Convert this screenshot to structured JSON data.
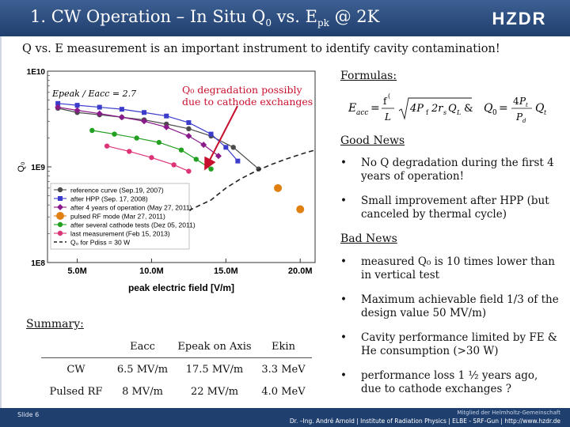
{
  "header": {
    "title_main": "1. CW Operation – In Situ Q",
    "title_sub0": "0",
    "title_mid": " vs. E",
    "title_sub1": "pk",
    "title_end": " @ 2K",
    "logo": "HZDR"
  },
  "subtitle": "Q vs. E measurement is an important instrument to identify cavity contamination!",
  "callout": {
    "line1": "Q₀ degradation possibly",
    "line2": "due to cathode exchanges"
  },
  "formulas": {
    "title": "Formulas:"
  },
  "good_news": {
    "title": "Good News",
    "items": [
      "No Q degradation during the first 4 years of operation!",
      "Small improvement after HPP (but canceled by thermal cycle)"
    ]
  },
  "bad_news": {
    "title": "Bad News",
    "items": [
      "measured Q₀ is 10 times lower than in vertical test",
      "Maximum achievable field 1/3 of the design value 50 MV/m)",
      "Cavity performance limited by FE & He consumption (>30 W)",
      "performance loss 1 ½ years ago, due to cathode exchanges ?"
    ]
  },
  "summary": {
    "title": "Summary:",
    "headers": [
      "",
      "Eacc",
      "Epeak on Axis",
      "Ekin"
    ],
    "rows": [
      [
        "CW",
        "6.5 MV/m",
        "17.5 MV/m",
        "3.3 MeV"
      ],
      [
        "Pulsed RF",
        "8 MV/m",
        "22 MV/m",
        "4.0 MeV"
      ]
    ]
  },
  "footer": {
    "slide": "Slide 6",
    "org": "Mitglied der Helmholtz-Gemeinschaft",
    "author": "Dr. –Ing. André Arnold | Institute of Radiation Physics | ELBE - SRF-Gun | http://www.hzdr.de"
  },
  "colors": {
    "header": "#1f3f6e",
    "callout": "#c8102e",
    "reference": "#4a4a4a",
    "hpp": "#3b3bcc",
    "four_years": "#8a1a8a",
    "pulsed": "#e08010",
    "cathode": "#22a022",
    "last": "#dd3377",
    "p_diss": "#222222"
  },
  "chart_data": {
    "type": "scatter",
    "xlabel": "peak electric field [V/m]",
    "ylabel": "Q₀",
    "xlim": [
      3.0,
      21.0
    ],
    "x_tick_labels": [
      "5.0M",
      "10.0M",
      "15.0M",
      "20.0M"
    ],
    "x_ticks": [
      5,
      10,
      15,
      20
    ],
    "y_log": true,
    "ylim": [
      100000000.0,
      10000000000.0
    ],
    "y_tick_labels": [
      "1E8",
      "1E9",
      "1E10"
    ],
    "annotation": "Epeak / Eacc = 2.7",
    "legend_position": "bottom-left",
    "series": [
      {
        "name": "reference curve (Sep.19, 2007)",
        "marker": "circle",
        "color": "#4a4a4a",
        "points": [
          [
            3.7,
            4100000000.0
          ],
          [
            5.0,
            3700000000.0
          ],
          [
            6.5,
            3500000000.0
          ],
          [
            8.0,
            3300000000.0
          ],
          [
            9.5,
            3100000000.0
          ],
          [
            11.0,
            2800000000.0
          ],
          [
            12.5,
            2500000000.0
          ],
          [
            14.0,
            2100000000.0
          ],
          [
            15.5,
            1600000000.0
          ],
          [
            17.2,
            950000000.0
          ]
        ]
      },
      {
        "name": "after HPP (Sep. 17, 2008)",
        "marker": "square",
        "color": "#3b3bcc",
        "points": [
          [
            3.7,
            4600000000.0
          ],
          [
            5.0,
            4400000000.0
          ],
          [
            6.5,
            4200000000.0
          ],
          [
            8.0,
            4000000000.0
          ],
          [
            9.5,
            3700000000.0
          ],
          [
            11.0,
            3400000000.0
          ],
          [
            12.5,
            2900000000.0
          ],
          [
            14.0,
            2200000000.0
          ],
          [
            15.0,
            1600000000.0
          ],
          [
            15.8,
            1150000000.0
          ]
        ]
      },
      {
        "name": "after 4 years of operation (May 27, 2011)",
        "marker": "diamond",
        "color": "#8a1a8a",
        "points": [
          [
            3.7,
            4200000000.0
          ],
          [
            5.0,
            3900000000.0
          ],
          [
            6.5,
            3600000000.0
          ],
          [
            8.0,
            3300000000.0
          ],
          [
            9.5,
            3000000000.0
          ],
          [
            11.0,
            2600000000.0
          ],
          [
            12.5,
            2100000000.0
          ],
          [
            13.5,
            1700000000.0
          ],
          [
            14.5,
            1300000000.0
          ]
        ]
      },
      {
        "name": "pulsed RF mode (Mar 27, 2011)",
        "marker": "circle",
        "color": "#e08010",
        "points": [
          [
            18.5,
            600000000.0
          ],
          [
            20.0,
            360000000.0
          ]
        ]
      },
      {
        "name": "after several cathode tests (Dez 05, 2011)",
        "marker": "circle",
        "color": "#22a022",
        "points": [
          [
            6.0,
            2400000000.0
          ],
          [
            7.5,
            2200000000.0
          ],
          [
            9.0,
            2000000000.0
          ],
          [
            10.5,
            1800000000.0
          ],
          [
            12.0,
            1500000000.0
          ],
          [
            13.0,
            1200000000.0
          ],
          [
            14.0,
            950000000.0
          ]
        ]
      },
      {
        "name": "last measurement (Feb 15, 2013)",
        "marker": "circle",
        "color": "#dd3377",
        "points": [
          [
            7.0,
            1650000000.0
          ],
          [
            8.5,
            1450000000.0
          ],
          [
            10.0,
            1250000000.0
          ],
          [
            11.5,
            1050000000.0
          ],
          [
            12.5,
            900000000.0
          ]
        ]
      },
      {
        "name": "Q₀ for Pdiss = 30 W",
        "marker": "dashed-line",
        "color": "#222222",
        "points": [
          [
            12.5,
            350000000.0
          ],
          [
            14.0,
            450000000.0
          ],
          [
            15.0,
            600000000.0
          ],
          [
            16.0,
            750000000.0
          ],
          [
            17.0,
            900000000.0
          ],
          [
            18.0,
            1050000000.0
          ],
          [
            19.0,
            1200000000.0
          ],
          [
            20.0,
            1350000000.0
          ],
          [
            21.0,
            1500000000.0
          ]
        ]
      }
    ]
  }
}
